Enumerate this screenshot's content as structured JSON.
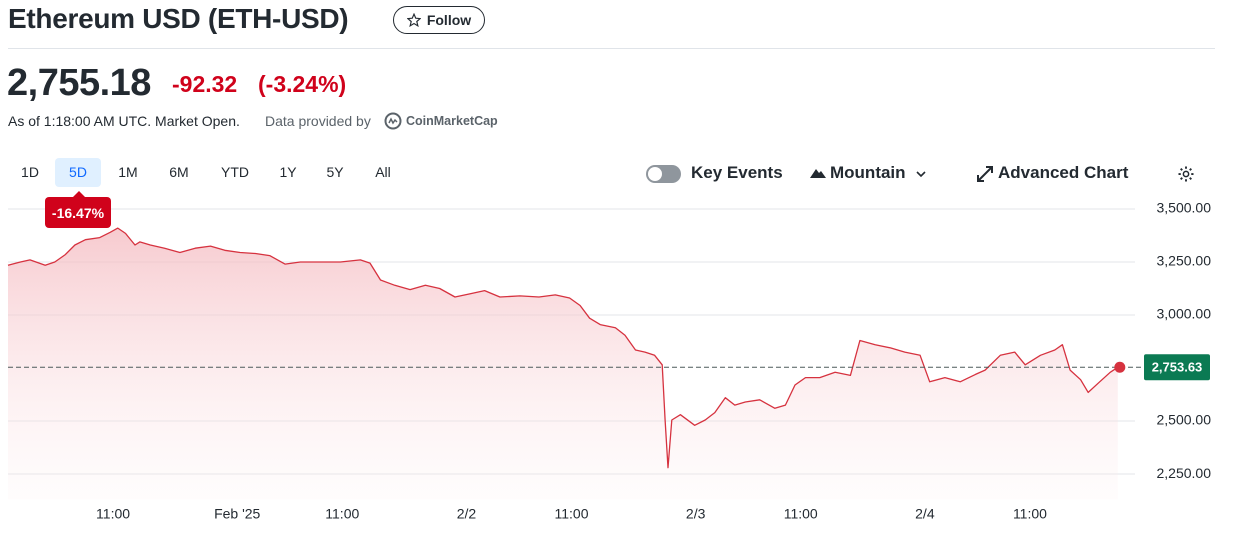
{
  "header": {
    "title": "Ethereum USD (ETH-USD)",
    "follow": "Follow"
  },
  "quote": {
    "price": "2,755.18",
    "change": "-92.32",
    "change_percent": "(-3.24%)",
    "as_of": "As of 1:18:00 AM UTC. Market Open.",
    "provider_prefix": "Data provided by",
    "provider": "CoinMarketCap"
  },
  "toolbar": {
    "ranges": [
      "1D",
      "5D",
      "1M",
      "6M",
      "YTD",
      "1Y",
      "5Y",
      "All"
    ],
    "range_change": "-16.47%",
    "key_events": "Key Events",
    "chart_type": "Mountain",
    "advanced_chart": "Advanced Chart"
  },
  "chart_data": {
    "type": "line",
    "color": "#d6323f",
    "fill": true,
    "grid": true,
    "x": [
      0,
      1.3,
      2.3,
      3.9,
      4.9,
      6.0,
      7.0,
      8.1,
      9.6,
      10.7,
      11.5,
      12.3,
      13.3,
      13.8,
      14.9,
      16.4,
      18.0,
      19.6,
      21.2,
      22.7,
      24.3,
      25.9,
      27.4,
      29.0,
      30.6,
      32.7,
      34.8,
      36.9,
      37.9,
      39.0,
      40.5,
      42.1,
      43.7,
      45.2,
      46.8,
      48.4,
      49.9,
      51.5,
      53.6,
      55.6,
      57.3,
      58.8,
      59.9,
      60.9,
      62.0,
      63.6,
      64.6,
      65.7,
      66.7,
      67.7,
      68.5,
      68.8,
      69.1,
      69.5,
      70.4,
      71.9,
      73.0,
      74.0,
      75.1,
      76.1,
      77.2,
      78.7,
      80.3,
      81.4,
      82.4,
      83.5,
      85.0,
      86.6,
      88.2,
      89.2,
      90.8,
      92.4,
      93.9,
      95.5,
      96.5,
      98.1,
      99.7,
      101.3,
      102.3,
      103.9,
      105.4,
      106.5,
      108.1,
      109.6,
      110.4,
      111.2,
      112.3,
      113.1,
      114.3,
      115.4,
      116.2
    ],
    "values": [
      3235,
      3250,
      3260,
      3235,
      3250,
      3285,
      3330,
      3355,
      3365,
      3390,
      3410,
      3385,
      3330,
      3345,
      3330,
      3315,
      3295,
      3315,
      3325,
      3305,
      3295,
      3290,
      3280,
      3240,
      3250,
      3250,
      3250,
      3260,
      3245,
      3165,
      3140,
      3120,
      3140,
      3125,
      3085,
      3100,
      3115,
      3085,
      3090,
      3085,
      3095,
      3080,
      3045,
      2985,
      2955,
      2940,
      2905,
      2835,
      2825,
      2810,
      2765,
      2505,
      2280,
      2505,
      2530,
      2480,
      2505,
      2540,
      2610,
      2575,
      2590,
      2600,
      2560,
      2575,
      2670,
      2705,
      2705,
      2730,
      2715,
      2880,
      2860,
      2845,
      2825,
      2810,
      2685,
      2705,
      2685,
      2720,
      2740,
      2810,
      2825,
      2765,
      2810,
      2835,
      2860,
      2740,
      2695,
      2635,
      2685,
      2730,
      2753.63
    ],
    "xlim": [
      0,
      118
    ],
    "ylim": [
      2130,
      3540
    ],
    "xticks": [
      {
        "value": 11,
        "label": "11:00"
      },
      {
        "value": 24,
        "label": "Feb '25"
      },
      {
        "value": 35,
        "label": "11:00"
      },
      {
        "value": 48,
        "label": "2/2"
      },
      {
        "value": 59,
        "label": "11:00"
      },
      {
        "value": 72,
        "label": "2/3"
      },
      {
        "value": 83,
        "label": "11:00"
      },
      {
        "value": 96,
        "label": "2/4"
      },
      {
        "value": 107,
        "label": "11:00"
      }
    ],
    "yticks": [
      {
        "value": 2250,
        "label": "2,250.00"
      },
      {
        "value": 2500,
        "label": "2,500.00"
      },
      {
        "value": 3000,
        "label": "3,000.00"
      },
      {
        "value": 3250,
        "label": "3,250.00"
      },
      {
        "value": 3500,
        "label": "3,500.00"
      }
    ],
    "reference": {
      "value": 2753.63,
      "label": "2,753.63",
      "color": "#0b7a53"
    }
  }
}
